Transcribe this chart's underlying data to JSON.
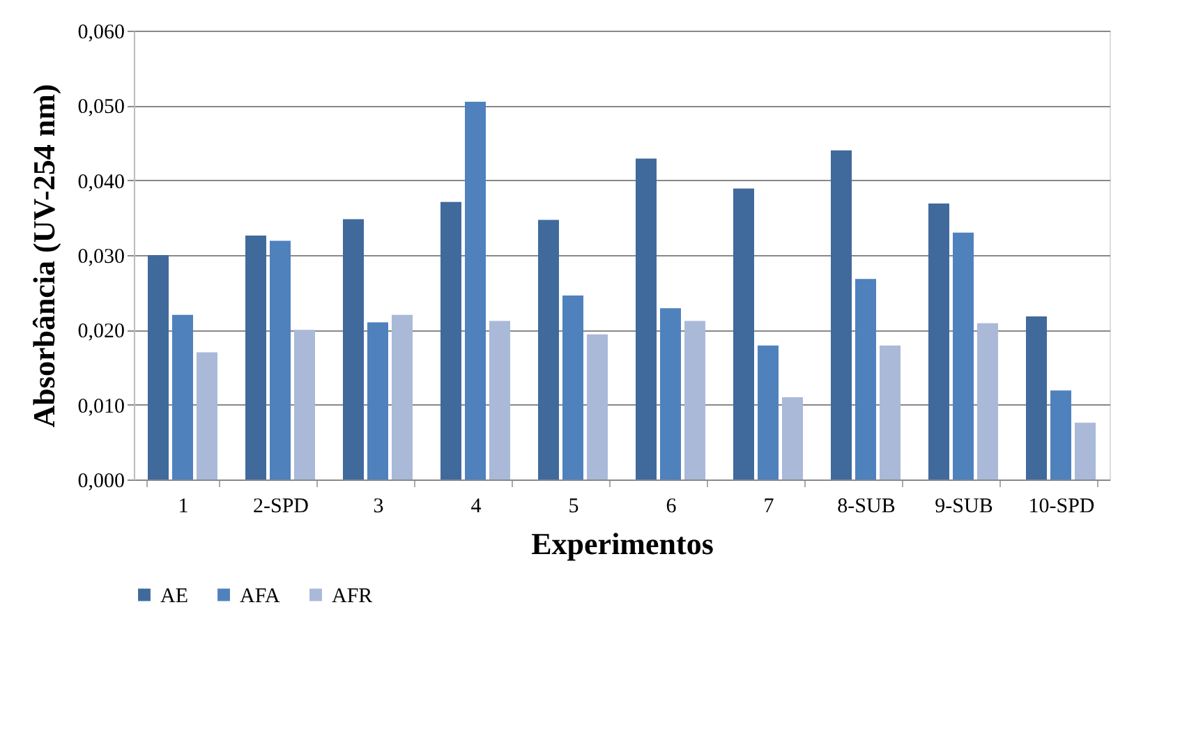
{
  "chart_data": {
    "type": "bar",
    "xlabel": "Experimentos",
    "ylabel": "Absorbância  (UV-254 nm)",
    "categories": [
      "1",
      "2-SPD",
      "3",
      "4",
      "5",
      "6",
      "7",
      "8-SUB",
      "9-SUB",
      "10-SPD"
    ],
    "series": [
      {
        "name": "AE",
        "color": "#416a9c",
        "values": [
          0.03,
          0.0326,
          0.0348,
          0.0371,
          0.0347,
          0.0429,
          0.0389,
          0.044,
          0.0369,
          0.0218
        ]
      },
      {
        "name": "AFA",
        "color": "#4f81bd",
        "values": [
          0.022,
          0.0319,
          0.021,
          0.0505,
          0.0246,
          0.0229,
          0.0179,
          0.0268,
          0.033,
          0.0119
        ]
      },
      {
        "name": "AFR",
        "color": "#aab9d8",
        "values": [
          0.017,
          0.02,
          0.022,
          0.0212,
          0.0194,
          0.0212,
          0.011,
          0.0179,
          0.0209,
          0.0076
        ]
      }
    ],
    "ylim": [
      0,
      0.06
    ],
    "yticks": [
      {
        "value": 0,
        "label": "0,000"
      },
      {
        "value": 0.01,
        "label": "0,010"
      },
      {
        "value": 0.02,
        "label": "0,020"
      },
      {
        "value": 0.03,
        "label": "0,030"
      },
      {
        "value": 0.04,
        "label": "0,040"
      },
      {
        "value": 0.05,
        "label": "0,050"
      },
      {
        "value": 0.06,
        "label": "0,060"
      }
    ],
    "grid": "y",
    "legend": "bottom"
  }
}
